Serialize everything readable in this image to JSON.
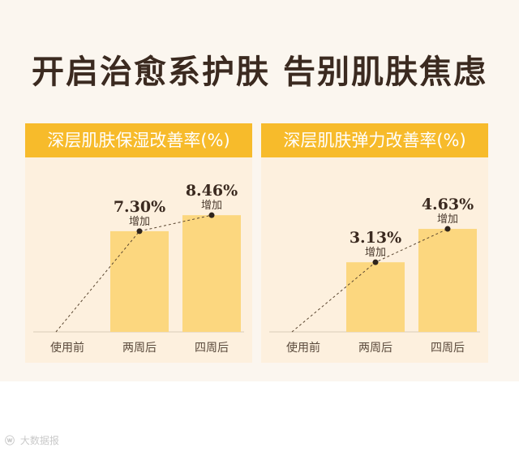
{
  "headline": "开启治愈系护肤 告别肌肤焦虑",
  "footer": {
    "icon": "weibo-icon",
    "text": "大数据报"
  },
  "colors": {
    "header": "#f7bb2b",
    "panel": "#fdf0de",
    "bar": "#fcd77f",
    "title": "#3b2a20",
    "value": "#3b2a20",
    "line": "#5a4630"
  },
  "chart_data": [
    {
      "type": "bar",
      "title": "深层肌肤保湿改善率(%)",
      "categories": [
        "使用前",
        "两周后",
        "四周后"
      ],
      "values": [
        0,
        7.3,
        8.46
      ],
      "data_labels": [
        "",
        "7.30%",
        "8.46%"
      ],
      "label_sublabel": "增加",
      "ylim": [
        0,
        10
      ],
      "trend_line": true
    },
    {
      "type": "bar",
      "title": "深层肌肤弹力改善率(%)",
      "categories": [
        "使用前",
        "两周后",
        "四周后"
      ],
      "values": [
        0,
        3.13,
        4.63
      ],
      "data_labels": [
        "",
        "3.13%",
        "4.63%"
      ],
      "label_sublabel": "增加",
      "ylim": [
        0,
        6.2
      ],
      "trend_line": true
    }
  ]
}
